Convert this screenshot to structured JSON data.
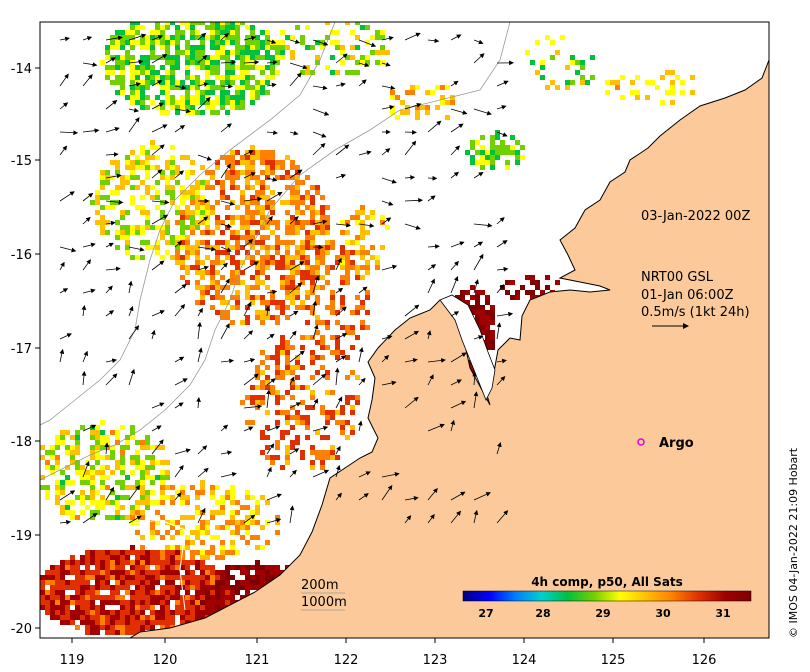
{
  "map": {
    "lon_ticks": [
      "119",
      "120",
      "121",
      "122",
      "123",
      "124",
      "125",
      "126"
    ],
    "lat_ticks": [
      "-14",
      "-15",
      "-16",
      "-17",
      "-18",
      "-19",
      "-20"
    ],
    "land_color": "#FCCA9A",
    "sea_color": "#FFFFFF"
  },
  "annotations": {
    "date_label": "03-Jan-2022 00Z",
    "current_source": "NRT00 GSL",
    "current_time": "01-Jan 06:00Z",
    "current_scale": "0.5m/s (1kt 24h)",
    "argo_label": "Argo",
    "depth_200": "200m",
    "depth_1000": "1000m",
    "credit": "© IMOS 04-Jan-2022 21:09 Hobart"
  },
  "colorbar": {
    "title": "4h comp, p50, All Sats",
    "tick_labels": [
      "27",
      "28",
      "29",
      "30",
      "31"
    ],
    "vmin": 26.7,
    "vmax": 31.5,
    "stops": [
      "#00007F",
      "#0000FF",
      "#007FFF",
      "#00CFD0",
      "#00C040",
      "#70D000",
      "#FFFF00",
      "#FFC000",
      "#FF7F00",
      "#E03000",
      "#A00000",
      "#7F0000"
    ]
  }
}
